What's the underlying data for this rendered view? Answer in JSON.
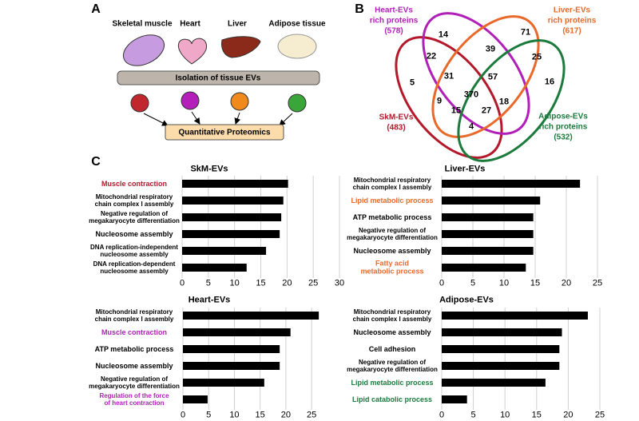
{
  "panel_a": {
    "label": "A",
    "tissues": [
      "Skeletal muscle",
      "Heart",
      "Liver",
      "Adipose tissue"
    ],
    "step1": "Isolation of tissue EVs",
    "step2": "Quantitative Proteomics"
  },
  "panel_b": {
    "label": "B",
    "sets": [
      {
        "lines": [
          "Heart-EVs",
          "rich proteins",
          "(578)"
        ],
        "color": "#b01fb8"
      },
      {
        "lines": [
          "Liver-EVs",
          "rich proteins",
          "(617)"
        ],
        "color": "#e8692a"
      },
      {
        "lines": [
          "SkM-EVs",
          "(483)"
        ],
        "color": "#b3182b"
      },
      {
        "lines": [
          "Adipose-EVs",
          "rich proteins",
          "(532)"
        ],
        "color": "#1b7a3c"
      }
    ],
    "regions": [
      "14",
      "39",
      "71",
      "22",
      "25",
      "5",
      "31",
      "57",
      "16",
      "370",
      "9",
      "18",
      "15",
      "27",
      "4"
    ]
  },
  "panel_c_label": "C",
  "chart_data": [
    {
      "type": "bar",
      "orientation": "horizontal",
      "title": "SkM-EVs",
      "categories": [
        "Muscle contraction",
        "Mitochondrial respiratory\nchain complex I assembly",
        "Negative regulation of\nmegakaryocyte differentiation",
        "Nucleosome assembly",
        "DNA replication-independent\nnucleosome assembly",
        "DNA replication-dependent\nnucleosome assembly"
      ],
      "label_colors": [
        "#b3182b",
        "#000000",
        "#000000",
        "#000000",
        "#000000",
        "#000000"
      ],
      "values": [
        20.2,
        19.3,
        18.9,
        18.6,
        16.0,
        12.3
      ],
      "color": "#000000",
      "xlim": [
        0,
        30
      ],
      "xticks": [
        0,
        5,
        10,
        15,
        20,
        25,
        30
      ],
      "grid": true
    },
    {
      "type": "bar",
      "orientation": "horizontal",
      "title": "Liver-EVs",
      "categories": [
        "Mitochondrial respiratory\nchain complex I assembly",
        "Lipid metabolic process",
        "ATP metabolic process",
        "Negative regulation of\nmegakaryocyte differentiation",
        "Nucleosome assembly",
        "Fatty acid\nmetabolic process"
      ],
      "label_colors": [
        "#000000",
        "#e8692a",
        "#000000",
        "#000000",
        "#000000",
        "#e8692a"
      ],
      "values": [
        22.2,
        15.8,
        14.7,
        14.7,
        14.7,
        13.5
      ],
      "color": "#000000",
      "xlim": [
        0,
        25
      ],
      "xticks": [
        0,
        5,
        10,
        15,
        20,
        25
      ],
      "grid": true
    },
    {
      "type": "bar",
      "orientation": "horizontal",
      "title": "Heart-EVs",
      "categories": [
        "Mitochondrial respiratory\nchain complex I assembly",
        "Muscle contraction",
        "ATP metabolic process",
        "Nucleosome assembly",
        "Negative regulation of\nmegakaryocyte differentiation",
        "Regulation of the force\nof heart contraction"
      ],
      "label_colors": [
        "#000000",
        "#b01fb8",
        "#000000",
        "#000000",
        "#000000",
        "#b01fb8"
      ],
      "values": [
        26.4,
        20.9,
        18.8,
        18.8,
        15.8,
        4.8
      ],
      "color": "#000000",
      "xlim": [
        0,
        27
      ],
      "xticks": [
        0,
        5,
        10,
        15,
        20,
        25
      ],
      "grid": true
    },
    {
      "type": "bar",
      "orientation": "horizontal",
      "title": "Adipose-EVs",
      "categories": [
        "Mitochondrial respiratory\nchain complex I assembly",
        "Nucleosome assembly",
        "Cell adhesion",
        "Negative regulation of\nmegakaryocyte differentiation",
        "Lipid metabolic process",
        "Lipid catabolic process"
      ],
      "label_colors": [
        "#000000",
        "#000000",
        "#000000",
        "#000000",
        "#1b7a3c",
        "#1b7a3c"
      ],
      "values": [
        23.1,
        19.0,
        18.6,
        18.6,
        16.4,
        4.0
      ],
      "color": "#000000",
      "xlim": [
        0,
        25
      ],
      "xticks": [
        0,
        5,
        10,
        15,
        20,
        25
      ],
      "grid": true
    }
  ]
}
